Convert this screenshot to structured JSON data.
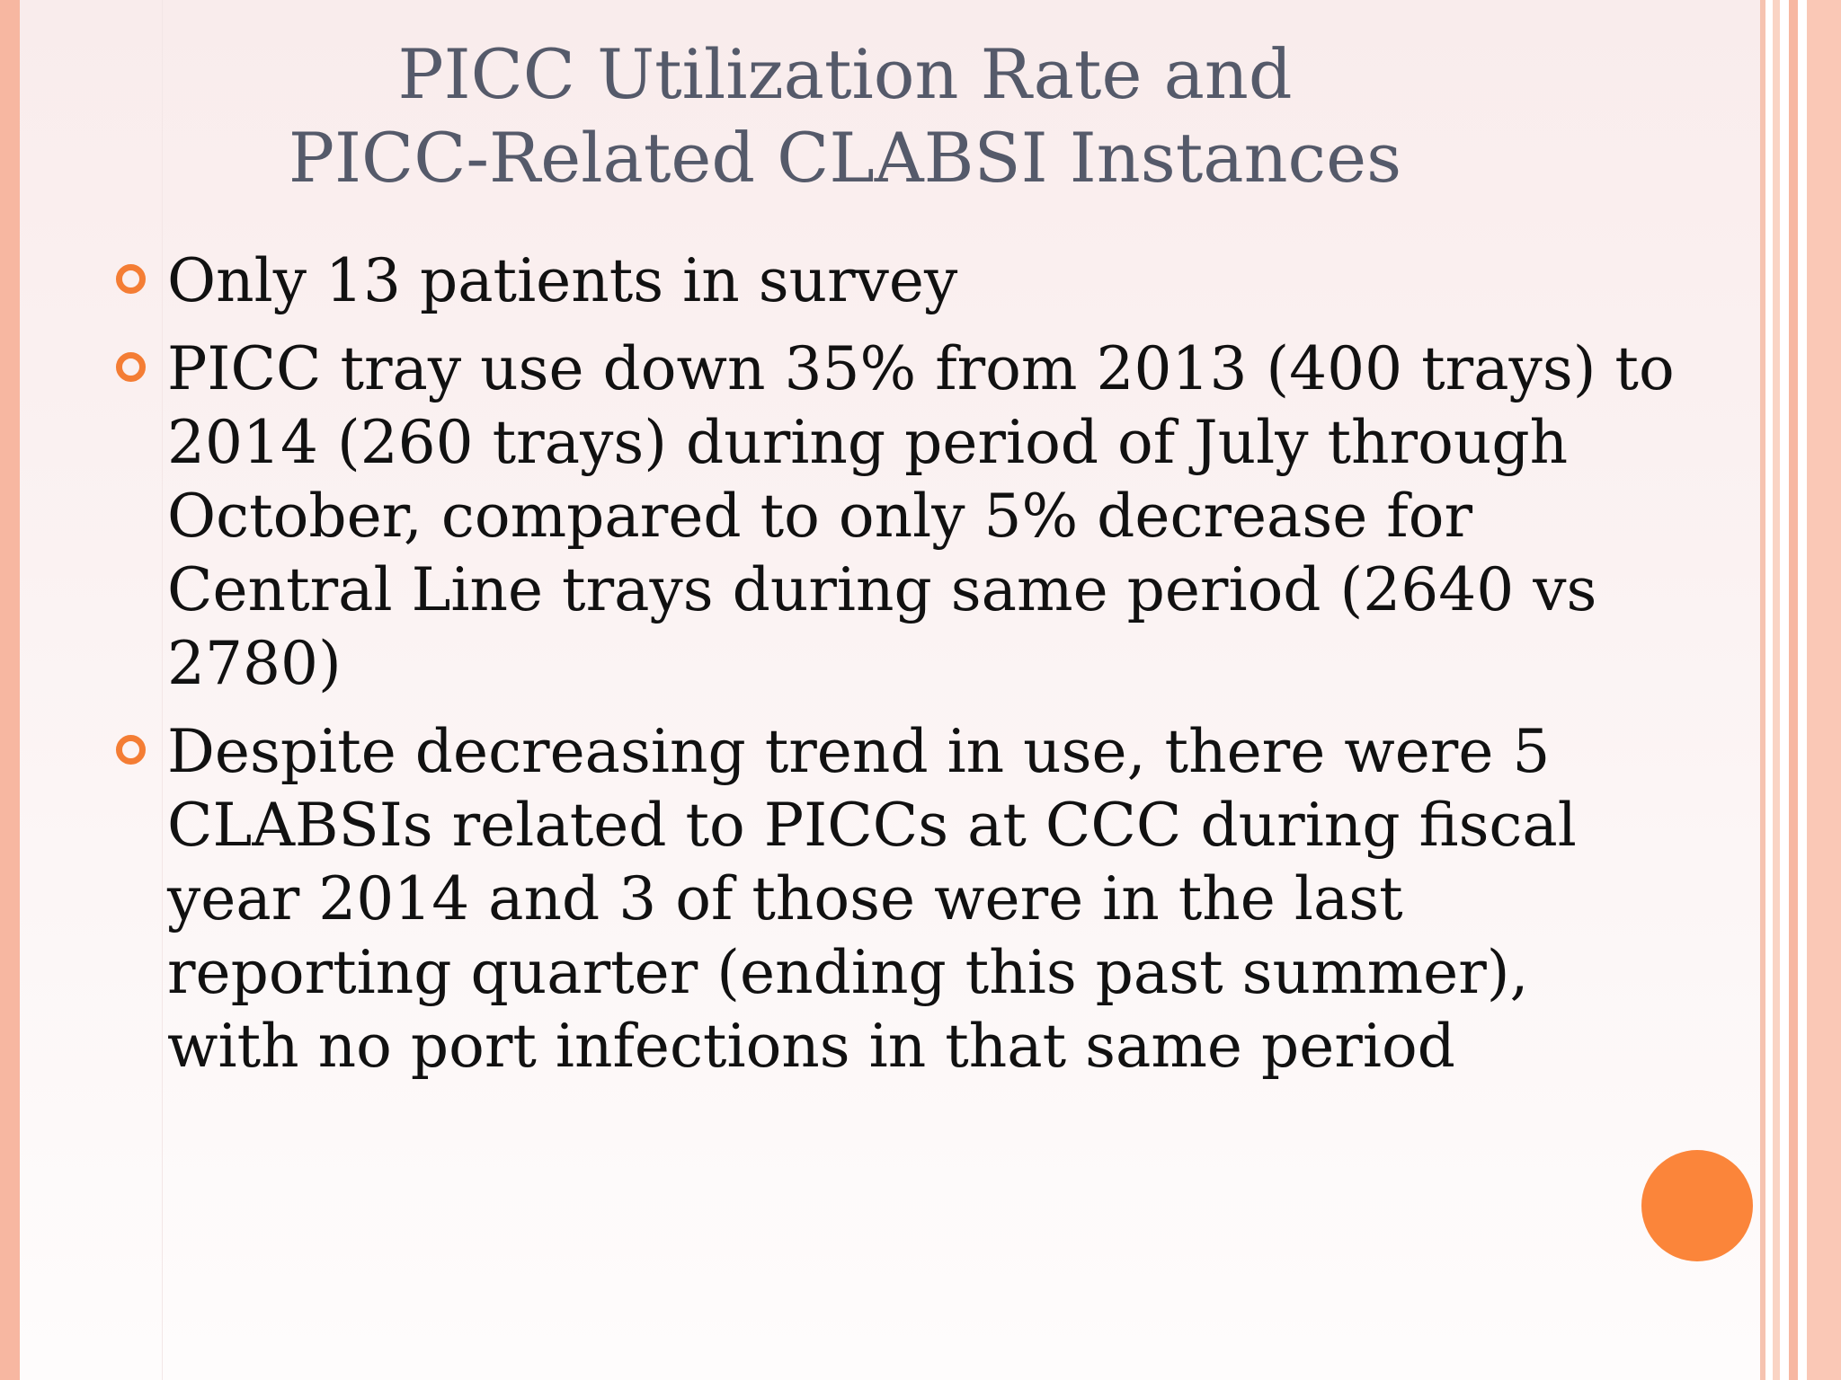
{
  "slide": {
    "title_lines": [
      "PICC Utilization Rate and",
      "PICC-Related CLABSI Instances"
    ],
    "bullets": [
      {
        "lines": [
          "Only 13 patients in survey"
        ]
      },
      {
        "lines": [
          "PICC tray use down 35% from 2013 (400 trays) to",
          "2014 (260 trays) during period of July through",
          "October, compared to only 5% decrease for",
          "Central Line trays during same period (2640 vs",
          "2780)"
        ]
      },
      {
        "lines": [
          "Despite decreasing trend in use, there were 5",
          "CLABSIs related to PICCs at CCC during fiscal",
          "year 2014 and 3 of those were in the last",
          "reporting quarter (ending this past summer),",
          "with no port infections in that same period"
        ]
      }
    ],
    "colors": {
      "title": "#555a6a",
      "body_text": "#111111",
      "accent_orange": "#f47d34",
      "decor_circle": "#fb853a",
      "side_bar": "#f7b7a1"
    },
    "icons": {
      "bullet": "hollow-circle-bullet-icon",
      "decoration": "orange-circle"
    }
  }
}
